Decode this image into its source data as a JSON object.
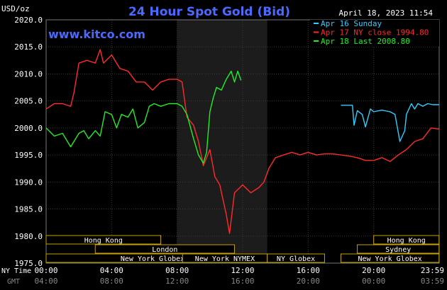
{
  "header": {
    "unit": "USD/oz",
    "title": "24 Hour Spot Gold (Bid)",
    "datetime": "April 18, 2023 11:54",
    "website": "www.kitco.com"
  },
  "legend": [
    {
      "label": "Apr 16 Sunday",
      "color": "#33ccff"
    },
    {
      "label": "Apr 17 NY close 1994.80",
      "color": "#ff2a2a"
    },
    {
      "label": "Apr 18 Last 2008.80",
      "color": "#22ee22"
    }
  ],
  "footer": {
    "ny_label": "NY Time",
    "gmt_label": "GMT",
    "ny_ticks": [
      "00:00",
      "04:00",
      "08:00",
      "12:00",
      "16:00",
      "20:00",
      "23:59"
    ],
    "gmt_ticks": [
      "04:00",
      "08:00",
      "12:00",
      "16:00",
      "20:00",
      "00:00",
      "03:59"
    ]
  },
  "sessions": [
    {
      "label": "Hong Kong",
      "start": 0.0,
      "end": 7.0,
      "row": 0
    },
    {
      "label": "London",
      "start": 3.0,
      "end": 11.5,
      "row": 1
    },
    {
      "label": "New York Globex",
      "start": 0.0,
      "end": 13.0,
      "row": 2
    },
    {
      "label": "New York NYMEX",
      "start": 8.33,
      "end": 13.5,
      "row": 2
    },
    {
      "label": "NY Globex",
      "start": 13.5,
      "end": 17.0,
      "row": 2
    },
    {
      "label": "Hong Kong",
      "start": 20.0,
      "end": 23.99,
      "row": 0
    },
    {
      "label": "Sydney",
      "start": 19.0,
      "end": 23.99,
      "row": 1
    },
    {
      "label": "New York Globex",
      "start": 18.0,
      "end": 23.99,
      "row": 2
    }
  ],
  "chart_data": {
    "type": "line",
    "xlabel": "",
    "ylabel": "",
    "xlim": [
      0,
      24
    ],
    "ylim": [
      1975,
      2020
    ],
    "y_ticks": [
      1975.0,
      1980.0,
      1985.0,
      1990.0,
      1995.0,
      2000.0,
      2005.0,
      2010.0,
      2015.0,
      2020.0
    ],
    "grid": true,
    "highlight_band": [
      8.0,
      13.5
    ],
    "series": [
      {
        "name": "Apr 16 Sunday",
        "color": "#33ccff",
        "x": [
          18.0,
          18.5,
          18.7,
          18.8,
          19.0,
          19.3,
          19.5,
          19.8,
          20.0,
          20.5,
          21.0,
          21.3,
          21.6,
          21.9,
          22.0,
          22.3,
          22.5,
          22.7,
          23.0,
          23.3,
          23.6,
          24.0
        ],
        "values": [
          2004.2,
          2004.2,
          2004.2,
          2000.5,
          2003.2,
          2002.5,
          2000.2,
          2003.5,
          2003.0,
          2003.3,
          2003.0,
          2002.5,
          1997.5,
          1999.5,
          2002.5,
          2004.5,
          2003.5,
          2004.5,
          2004.0,
          2004.5,
          2004.3,
          2004.3
        ]
      },
      {
        "name": "Apr 17 NY close 1994.80",
        "color": "#ff2a2a",
        "x": [
          0.0,
          0.5,
          1.0,
          1.5,
          1.7,
          2.0,
          2.5,
          3.0,
          3.3,
          3.5,
          4.0,
          4.5,
          5.0,
          5.5,
          6.0,
          6.5,
          7.0,
          7.5,
          8.0,
          8.3,
          8.6,
          9.0,
          9.3,
          9.6,
          10.0,
          10.3,
          10.6,
          11.0,
          11.2,
          11.5,
          12.0,
          12.5,
          13.0,
          13.3,
          13.6,
          14.0,
          14.5,
          15.0,
          15.5,
          16.0,
          16.5,
          17.0,
          17.5,
          18.0,
          18.5,
          19.0,
          19.5,
          20.0,
          20.5,
          21.0,
          21.5,
          22.0,
          22.5,
          23.0,
          23.5,
          24.0
        ],
        "values": [
          2003.5,
          2004.5,
          2004.5,
          2004.0,
          2006.5,
          2012.0,
          2012.5,
          2012.0,
          2014.5,
          2012.0,
          2013.5,
          2011.0,
          2010.5,
          2008.5,
          2008.5,
          2007.0,
          2008.5,
          2009.0,
          2009.0,
          2008.5,
          2002.0,
          2000.5,
          1997.5,
          1993.0,
          1996.0,
          1991.0,
          1989.5,
          1984.0,
          1980.5,
          1988.0,
          1989.5,
          1988.0,
          1989.0,
          1990.0,
          1992.5,
          1994.5,
          1995.0,
          1995.5,
          1995.0,
          1995.5,
          1995.0,
          1995.2,
          1995.2,
          1995.0,
          1994.8,
          1994.5,
          1994.0,
          1994.0,
          1994.5,
          1993.8,
          1995.0,
          1996.0,
          1997.5,
          1998.0,
          2000.0,
          1999.8
        ]
      },
      {
        "name": "Apr 18 Last 2008.80",
        "color": "#22ee22",
        "x": [
          0.0,
          0.5,
          1.0,
          1.5,
          2.0,
          2.3,
          2.6,
          3.0,
          3.3,
          3.6,
          4.0,
          4.3,
          4.6,
          5.0,
          5.3,
          5.6,
          6.0,
          6.3,
          6.6,
          7.0,
          7.5,
          8.0,
          8.3,
          8.6,
          9.0,
          9.3,
          9.6,
          9.8,
          10.0,
          10.2,
          10.4,
          10.7,
          11.0,
          11.3,
          11.5,
          11.7,
          11.9
        ],
        "values": [
          2000.0,
          1998.5,
          1999.0,
          1996.5,
          1999.0,
          1999.5,
          1998.0,
          1999.5,
          1998.5,
          2003.0,
          2002.5,
          2000.0,
          2002.5,
          2002.0,
          2003.5,
          2000.0,
          2001.0,
          2004.0,
          2004.5,
          2004.0,
          2004.5,
          2004.5,
          2004.0,
          2002.5,
          1998.0,
          1995.0,
          1993.5,
          1995.5,
          2003.0,
          2005.5,
          2007.5,
          2007.0,
          2009.0,
          2010.5,
          2008.5,
          2010.5,
          2008.8
        ]
      }
    ]
  }
}
